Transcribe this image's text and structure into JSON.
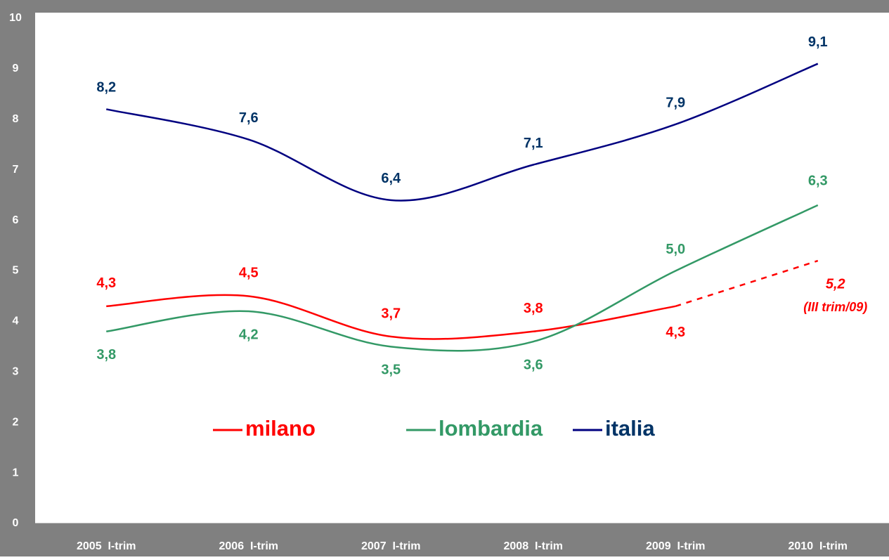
{
  "chart_data": {
    "type": "line",
    "categories": [
      "2005  I-trim",
      "2006  I-trim",
      "2007  I-trim",
      "2008  I-trim",
      "2009  I-trim",
      "2010  I-trim"
    ],
    "series": [
      {
        "name": "milano",
        "color": "#ff0000",
        "values": [
          4.3,
          4.5,
          3.7,
          3.8,
          4.3,
          5.2
        ],
        "value_labels": [
          "4,3",
          "4,5",
          "3,7",
          "3,8",
          "4,3",
          "5,2"
        ],
        "dash_last_segment": true
      },
      {
        "name": "lombardia",
        "color": "#339966",
        "values": [
          3.8,
          4.2,
          3.5,
          3.6,
          5.0,
          6.3
        ],
        "value_labels": [
          "3,8",
          "4,2",
          "3,5",
          "3,6",
          "5,0",
          "6,3"
        ]
      },
      {
        "name": "italia",
        "color": "#000080",
        "values": [
          8.2,
          7.6,
          6.4,
          7.1,
          7.9,
          9.1
        ],
        "value_labels": [
          "8,2",
          "7,6",
          "6,4",
          "7,1",
          "7,9",
          "9,1"
        ]
      }
    ],
    "annotations": [
      "(III trim/09)"
    ],
    "ylim": [
      0,
      10
    ],
    "yticks": [
      0,
      1,
      2,
      3,
      4,
      5,
      6,
      7,
      8,
      9,
      10
    ],
    "grid": false,
    "legend": "center"
  }
}
